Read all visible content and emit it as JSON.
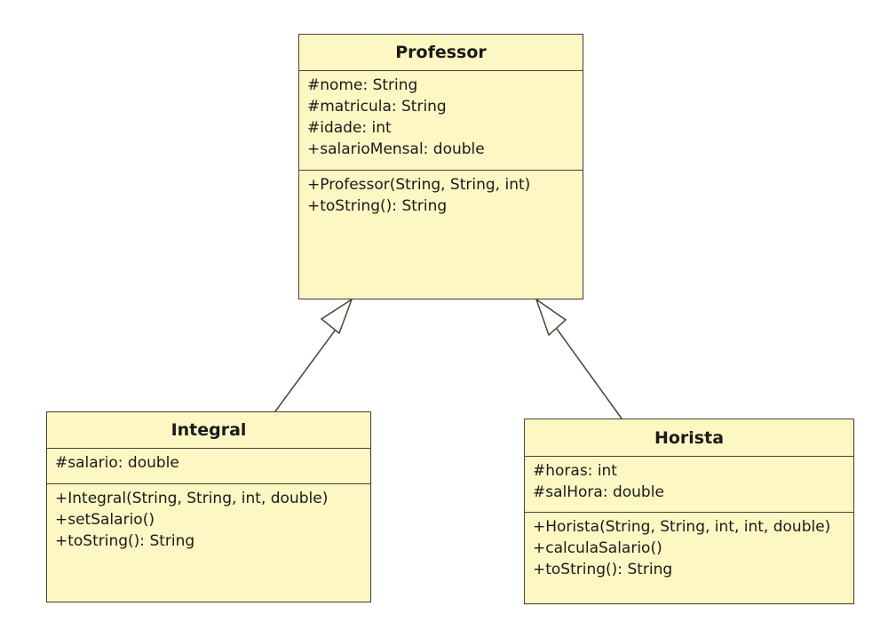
{
  "classes": {
    "professor": {
      "name": "Professor",
      "attributes": [
        "#nome: String",
        "#matricula: String",
        "#idade: int",
        "+salarioMensal: double"
      ],
      "operations": [
        "+Professor(String, String, int)",
        "+toString(): String"
      ]
    },
    "integral": {
      "name": "Integral",
      "attributes": [
        "#salario: double"
      ],
      "operations": [
        "+Integral(String, String, int, double)",
        "+setSalario()",
        "+toString(): String"
      ]
    },
    "horista": {
      "name": "Horista",
      "attributes": [
        "#horas: int",
        "#salHora: double"
      ],
      "operations": [
        "+Horista(String, String, int, int, double)",
        "+calculaSalario()",
        "+toString(): String"
      ]
    }
  },
  "relations": [
    {
      "type": "generalization",
      "from": "Integral",
      "to": "Professor"
    },
    {
      "type": "generalization",
      "from": "Horista",
      "to": "Professor"
    }
  ]
}
